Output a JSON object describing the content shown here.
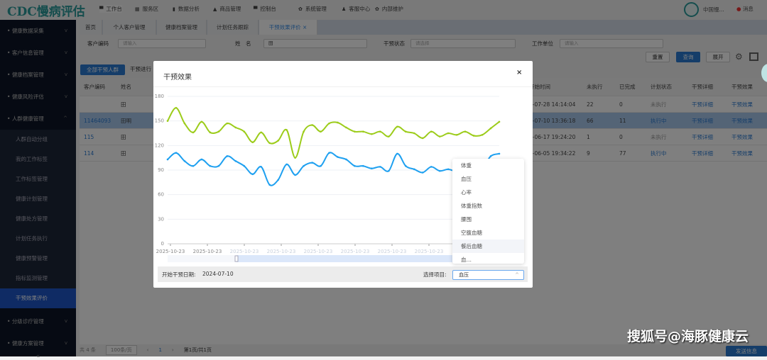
{
  "app": {
    "logo": "CDC慢病评估",
    "user": "中国慢...",
    "messages": "消息"
  },
  "nav": [
    {
      "icon": "monitor-icon",
      "label": "工作台"
    },
    {
      "icon": "grid-icon",
      "label": "服务区"
    },
    {
      "icon": "bar-chart-icon",
      "label": "数据分析"
    },
    {
      "icon": "bag-icon",
      "label": "商品管理"
    },
    {
      "icon": "monitor-icon",
      "label": "控制台"
    },
    {
      "icon": "gear-icon",
      "label": "系统管理"
    },
    {
      "icon": "user-icon",
      "label": "客服中心"
    },
    {
      "icon": "gear-icon",
      "label": "内部维护"
    }
  ],
  "sidebar": {
    "groups": [
      "健康数据采集",
      "客户信息管理",
      "健康档案管理",
      "健康风险评估",
      "人群健康管理"
    ],
    "sub": [
      "人群自动分组",
      "我的工作标签",
      "工作标签管理",
      "健康计划管理",
      "健康处方管理",
      "计划任务执行",
      "健康预警管理",
      "指标监测管理",
      "干预效果评价"
    ],
    "after": [
      "分级诊疗管理",
      "健康方案管理"
    ],
    "collapse": "«"
  },
  "tabs": [
    "首页",
    "个人客户管理",
    "健康档案管理",
    "计划任务跟踪",
    "干预效果评价 ×"
  ],
  "filters": {
    "code_label": "客户编码",
    "code_placeholder": "请输入",
    "name_label": "姓　名",
    "name_value": "田",
    "status_label": "干预状态",
    "status_placeholder": "请选择",
    "unit_label": "工作单位",
    "unit_placeholder": "请输入",
    "reset": "重置",
    "query": "查询",
    "expand": "展开"
  },
  "subtabs": [
    "全部干预人群",
    "干预进行"
  ],
  "table": {
    "headers": [
      "客户编码",
      "姓名",
      "开始时间",
      "未执行",
      "已完成",
      "计划状态",
      "干预详细",
      "干预效果"
    ],
    "rows": [
      {
        "code": "",
        "name": "田",
        "time": "5-07-28 14:14:04",
        "todo": "22",
        "done": "0",
        "status": "未执行",
        "detail": "干预详细",
        "effect": "干预效果"
      },
      {
        "code": "11464093",
        "name": "田明",
        "time": "4-07-10 13:36:18",
        "todo": "66",
        "done": "11",
        "status": "执行中",
        "detail": "干预详细",
        "effect": "干预效果"
      },
      {
        "code": "115",
        "name": "田",
        "time": "4-06-17 19:24:20",
        "todo": "1",
        "done": "0",
        "status": "未执行",
        "detail": "干预详细",
        "effect": "干预效果"
      },
      {
        "code": "114",
        "name": "田",
        "time": "4-06-05 19:34:22",
        "todo": "9",
        "done": "77",
        "status": "执行中",
        "detail": "干预详细",
        "effect": "干预效果"
      }
    ]
  },
  "footer": {
    "total": "共 4 条",
    "page_size": "100条/页",
    "page": "1",
    "pages": "第1页/共1页",
    "send": "发送信息"
  },
  "modal": {
    "title": "干预效果",
    "close": "×",
    "start_label": "开始干预日期:",
    "start_value": "2024-07-10",
    "select_label": "选择项目:",
    "select_value": "血压",
    "options": [
      "体重",
      "血压",
      "心率",
      "体重指数",
      "腰围",
      "空腹血糖",
      "餐后血糖",
      "血…"
    ]
  },
  "watermark": "搜狐号@海豚健康云",
  "chart_data": {
    "type": "line",
    "ylim": [
      0,
      180
    ],
    "yticks": [
      0,
      30,
      60,
      90,
      120,
      150,
      180
    ],
    "x_tick_labels": [
      "2025-10-23",
      "2025-10-23",
      "2025-10-23",
      "2025-10-23",
      "2025-10-23",
      "2025-10-23",
      "2025-10-23",
      "2025-10-23"
    ],
    "colors": [
      "#9ccc1a",
      "#1ea0f0"
    ],
    "series": [
      {
        "values": [
          150,
          166,
          147,
          136,
          149,
          136,
          137,
          147,
          142,
          137,
          124,
          136,
          123,
          126,
          139,
          105,
          137,
          145,
          137,
          147,
          148,
          142,
          137,
          137,
          134,
          137,
          131,
          143,
          137,
          135,
          129,
          137,
          131,
          135,
          133,
          137,
          132,
          133,
          141,
          149
        ]
      },
      {
        "values": [
          103,
          111,
          101,
          95,
          103,
          95,
          95,
          107,
          101,
          95,
          85,
          94,
          72,
          78,
          97,
          84,
          95,
          99,
          95,
          111,
          106,
          103,
          95,
          95,
          92,
          94,
          89,
          110,
          95,
          91,
          87,
          94,
          89,
          91,
          88,
          89,
          90,
          92,
          107,
          110
        ]
      }
    ]
  }
}
